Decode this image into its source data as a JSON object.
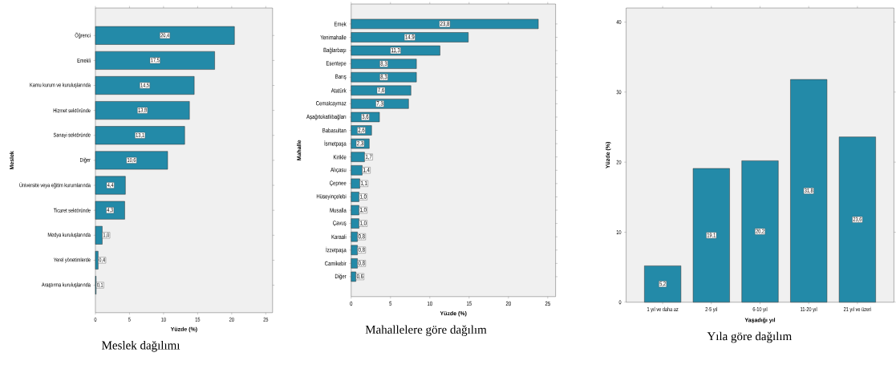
{
  "chart_data": [
    {
      "type": "bar",
      "orientation": "horizontal",
      "title": "Meslek dağılımı",
      "xlabel": "Yüzde (%)",
      "ylabel": "Meslek",
      "color": "#238aa8",
      "categories": [
        "Öğrenci",
        "Emekli",
        "Kamu kurum ve kuruluşlarında",
        "Hizmet sektöründe",
        "Sanayi sektöründe",
        "Diğer",
        "Üniversite veya eğitim kurumlarında",
        "Ticaret sektöründe",
        "Medya kuruluşlarında",
        "Yerel yönetimlerde",
        "Araştırma kuruluşlarında"
      ],
      "values": [
        20.4,
        17.5,
        14.5,
        13.8,
        13.1,
        10.6,
        4.4,
        4.3,
        1.0,
        0.4,
        0.1
      ],
      "value_labels": [
        "20,4",
        "17,5",
        "14,5",
        "13,8",
        "13,1",
        "10,6",
        "4,4",
        "4,3",
        "1,0",
        "0,4",
        "0,1"
      ],
      "xlim": [
        0,
        26
      ],
      "xticks": [
        0,
        5,
        10,
        15,
        20,
        25
      ]
    },
    {
      "type": "bar",
      "orientation": "horizontal",
      "title": "Mahallelere göre dağılım",
      "xlabel": "Yüzde (%)",
      "ylabel": "Mahalle",
      "color": "#238aa8",
      "categories": [
        "Emek",
        "Yenimahalle",
        "Bağlarbaşı",
        "Esentepe",
        "Barış",
        "Atatürk",
        "Cemalcaymaz",
        "Aşağıtokatlıbağları",
        "Babasultan",
        "İsmetpaşa",
        "Kirikle",
        "Alıçasu",
        "Çepnee",
        "Hüseyinçelebi",
        "Musalla",
        "Çavuş",
        "Karaali",
        "İzzetpaşa",
        "Camikebir",
        "Diğer"
      ],
      "values": [
        23.8,
        14.9,
        11.3,
        8.3,
        8.3,
        7.6,
        7.3,
        3.6,
        2.6,
        2.3,
        1.7,
        1.4,
        1.1,
        1.0,
        1.0,
        1.0,
        0.8,
        0.8,
        0.8,
        0.6
      ],
      "value_labels": [
        "23,8",
        "14,9",
        "11,3",
        "8,3",
        "8,3",
        "7,6",
        "7,3",
        "3,6",
        "2,6",
        "2,3",
        "1,7",
        "1,4",
        "1,1",
        "1,0",
        "1,0",
        "1,0",
        "0,8",
        "0,8",
        "0,8",
        "0,6"
      ],
      "xlim": [
        0,
        26
      ],
      "xticks": [
        0,
        5,
        10,
        15,
        20,
        25
      ]
    },
    {
      "type": "bar",
      "title": "Yıla göre dağılım",
      "xlabel": "Yaşadığı yıl",
      "ylabel": "Yüzde (%)",
      "color": "#238aa8",
      "categories": [
        "1 yıl ve daha az",
        "2-5 yıl",
        "6-10 yıl",
        "11-20 yıl",
        "21 yıl ve üzeri"
      ],
      "values": [
        5.2,
        19.1,
        20.2,
        31.8,
        23.6
      ],
      "value_labels": [
        "5,2",
        "19,1",
        "20,2",
        "31,8",
        "23,6"
      ],
      "ylim": [
        0,
        42
      ],
      "yticks": [
        0,
        10,
        20,
        30,
        40
      ]
    }
  ]
}
